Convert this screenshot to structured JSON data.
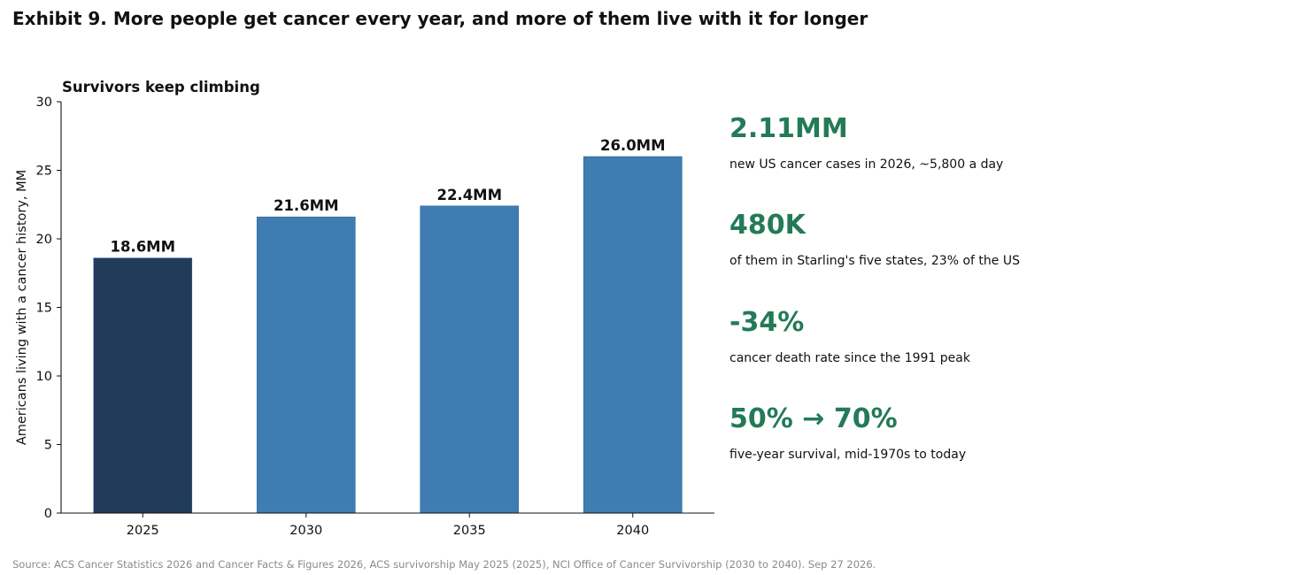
{
  "exhibit_title": "Exhibit 9. More people get cancer every year, and more of them live with it for longer",
  "chart_data": {
    "type": "bar",
    "title": "Survivors keep climbing",
    "ylabel": "Americans living with a cancer history, MM",
    "xlabel": "",
    "categories": [
      "2025",
      "2030",
      "2035",
      "2040"
    ],
    "values": [
      18.6,
      21.6,
      22.4,
      26.0
    ],
    "data_labels": [
      "18.6MM",
      "21.6MM",
      "22.4MM",
      "26.0MM"
    ],
    "bar_colors": [
      "#223b59",
      "#3f7cb2",
      "#3f7cb2",
      "#3f7cb2"
    ],
    "ylim": [
      0,
      30
    ],
    "yticks": [
      0,
      5,
      10,
      15,
      20,
      25,
      30
    ],
    "grid": false
  },
  "stats": [
    {
      "value": "2.11MM",
      "desc": "new US cancer cases in 2026, ~5,800 a day"
    },
    {
      "value": "480K",
      "desc": "of them in Starling's five states, 23% of the US"
    },
    {
      "value": "-34%",
      "desc": "cancer death rate since the 1991 peak"
    },
    {
      "value": "50% → 70%",
      "desc": "five-year survival, mid-1970s to today"
    }
  ],
  "accent_color": "#237a57",
  "source": "Source: ACS Cancer Statistics 2026 and Cancer Facts & Figures 2026, ACS survivorship May 2025 (2025), NCI Office of Cancer Survivorship (2030 to 2040). Sep 27 2026."
}
